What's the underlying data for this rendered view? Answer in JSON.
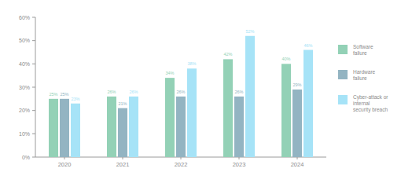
{
  "chart_data": {
    "type": "bar",
    "categories": [
      "2020",
      "2021",
      "2022",
      "2023",
      "2024"
    ],
    "series": [
      {
        "name": "Software failure",
        "color": "#93d1b6",
        "values": [
          25,
          26,
          34,
          42,
          40
        ],
        "value_labels": [
          "25%",
          "26%",
          "34%",
          "42%",
          "40%"
        ]
      },
      {
        "name": "Hardware failure",
        "color": "#93b4c2",
        "values": [
          25,
          21,
          26,
          26,
          29
        ],
        "value_labels": [
          "25%",
          "21%",
          "26%",
          "26%",
          "29%"
        ]
      },
      {
        "name": "Cyber-attack or internal security breach",
        "color": "#a6e3f7",
        "values": [
          23,
          26,
          38,
          52,
          46
        ],
        "value_labels": [
          "23%",
          "26%",
          "38%",
          "52%",
          "46%"
        ]
      }
    ],
    "ylim": [
      0,
      60
    ],
    "yticks": [
      {
        "value": 0,
        "label": "0%"
      },
      {
        "value": 10,
        "label": "10%"
      },
      {
        "value": 20,
        "label": "20%"
      },
      {
        "value": 30,
        "label": "30%"
      },
      {
        "value": 40,
        "label": "40%"
      },
      {
        "value": 50,
        "label": "50%"
      },
      {
        "value": 60,
        "label": "60%"
      }
    ],
    "grid": false,
    "legend": "right",
    "data_labels": true
  }
}
